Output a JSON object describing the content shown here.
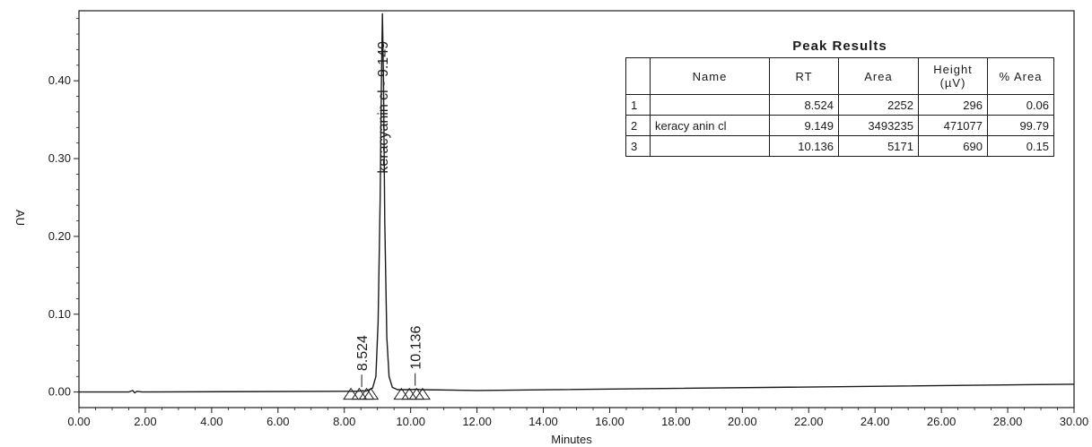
{
  "chart_data": {
    "type": "line",
    "xlabel": "Minutes",
    "ylabel": "AU",
    "xlim": [
      0,
      30
    ],
    "ylim": [
      -0.02,
      0.49
    ],
    "x_ticks": [
      "0.00",
      "2.00",
      "4.00",
      "6.00",
      "8.00",
      "10.00",
      "12.00",
      "14.00",
      "16.00",
      "18.00",
      "20.00",
      "22.00",
      "24.00",
      "26.00",
      "28.00",
      "30.00"
    ],
    "y_ticks": [
      "0.00",
      "0.10",
      "0.20",
      "0.30",
      "0.40"
    ],
    "series": [
      {
        "x": [
          0,
          1.5,
          1.62,
          1.68,
          1.75,
          1.9,
          8.0,
          8.4,
          8.524,
          8.65,
          8.85,
          8.95,
          9.02,
          9.08,
          9.12,
          9.149,
          9.18,
          9.22,
          9.28,
          9.35,
          9.45,
          9.6,
          9.9,
          10.0,
          10.136,
          10.3,
          12,
          30
        ],
        "y": [
          0.0,
          0.0,
          0.002,
          -0.001,
          0.001,
          0.0,
          0.001,
          0.001,
          0.0017,
          0.0012,
          0.005,
          0.02,
          0.09,
          0.25,
          0.4,
          0.486,
          0.4,
          0.22,
          0.07,
          0.02,
          0.006,
          0.003,
          0.003,
          0.003,
          0.0035,
          0.003,
          0.002,
          0.01
        ]
      }
    ],
    "peak_labels": [
      {
        "text": "8.524",
        "x": 8.524,
        "y": 0.0017
      },
      {
        "text": "keracyanin cl - 9.149",
        "x": 9.149,
        "y": 0.486
      },
      {
        "text": "10.136",
        "x": 10.136,
        "y": 0.0035
      }
    ],
    "integration_marks": [
      {
        "x": 8.2,
        "y": 0.0,
        "shape": "triangle"
      },
      {
        "x": 8.45,
        "y": 0.0,
        "shape": "triangle"
      },
      {
        "x": 8.67,
        "y": 0.0,
        "shape": "triangle"
      },
      {
        "x": 8.8,
        "y": 0.0,
        "shape": "triangle"
      },
      {
        "x": 9.72,
        "y": 0.0,
        "shape": "triangle"
      },
      {
        "x": 9.96,
        "y": 0.0,
        "shape": "triangle"
      },
      {
        "x": 10.18,
        "y": 0.0,
        "shape": "triangle"
      },
      {
        "x": 10.36,
        "y": 0.0,
        "shape": "triangle"
      }
    ],
    "grid": false,
    "line_color": "#1a1a1a"
  },
  "peak_results": {
    "title": "Peak Results",
    "headers": [
      "",
      "Name",
      "RT",
      "Area",
      "Height (µV)",
      "% Area"
    ],
    "rows": [
      {
        "idx": "1",
        "name": "",
        "rt": "8.524",
        "area": "2252",
        "height": "296",
        "pct": "0.06"
      },
      {
        "idx": "2",
        "name": "keracy anin cl",
        "rt": "9.149",
        "area": "3493235",
        "height": "471077",
        "pct": "99.79"
      },
      {
        "idx": "3",
        "name": "",
        "rt": "10.136",
        "area": "5171",
        "height": "690",
        "pct": "0.15"
      }
    ]
  }
}
